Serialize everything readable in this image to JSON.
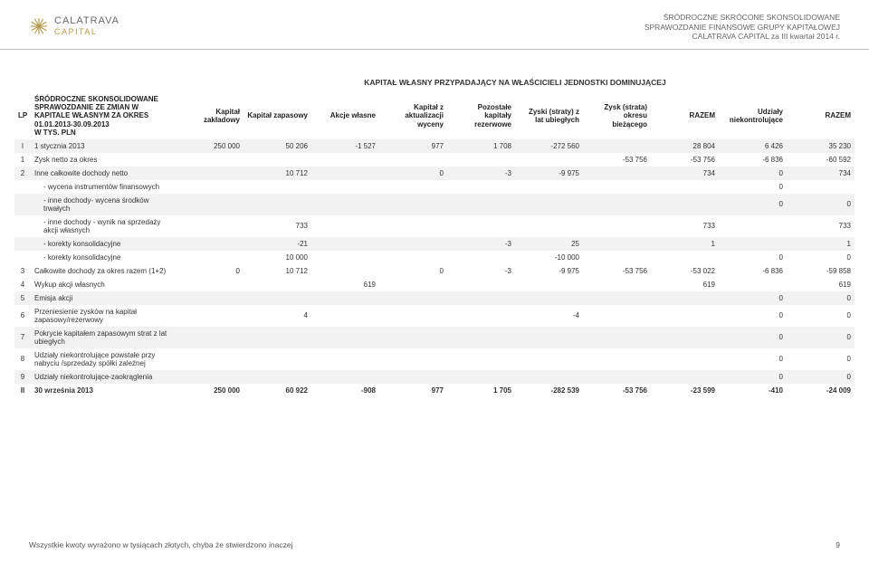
{
  "header": {
    "logo_top": "CALATRAVA",
    "logo_bottom": "CAPITAL",
    "logo_color": "#b5984c",
    "right_lines": [
      "ŚRÓDROCZNE SKRÓCONE SKONSOLIDOWANE",
      "SPRAWOZDANIE FINANSOWE  GRUPY KAPITAŁOWEJ",
      "CALATRAVA CAPITAL za III kwartał 2014 r."
    ]
  },
  "table": {
    "super_header": "KAPITAŁ WŁASNY PRZYPADAJĄCY NA WŁAŚCICIELI JEDNOSTKI DOMINUJĄCEJ",
    "lp_label": "LP",
    "desc_header": "ŚRÓDROCZNE SKONSOLIDOWANE SPRAWOZDANIE ZE ZMIAN W KAPITALE WŁASNYM ZA OKRES 01.01.2013-30.09.2013\nW TYS. PLN",
    "columns": [
      "Kapitał zakładowy",
      "Kapitał zapasowy",
      "Akcje własne",
      "Kapitał z aktualizacji wyceny",
      "Pozostałe kapitały rezerwowe",
      "Zyski (straty) z lat ubiegłych",
      "Zysk (strata) okresu bieżącego",
      "RAZEM",
      "Udziały niekontrolujące",
      "RAZEM"
    ],
    "rows": [
      {
        "lp": "I",
        "stripe": "even",
        "desc": "1 stycznia 2013",
        "vals": [
          "250 000",
          "50 206",
          "-1 527",
          "977",
          "1 708",
          "-272 560",
          "",
          "28 804",
          "6 426",
          "35 230"
        ]
      },
      {
        "lp": "1",
        "stripe": "odd",
        "desc": "Zysk netto za okres",
        "vals": [
          "",
          "",
          "",
          "",
          "",
          "",
          "-53 756",
          "-53 756",
          "-6 836",
          "-60 592"
        ]
      },
      {
        "lp": "2",
        "stripe": "even",
        "desc": "Inne całkowite dochody netto",
        "vals": [
          "",
          "10 712",
          "",
          "0",
          "-3",
          "-9 975",
          "",
          "734",
          "0",
          "734"
        ]
      },
      {
        "lp": "",
        "stripe": "odd",
        "indent": true,
        "desc": "- wycena instrumentów finansowych",
        "vals": [
          "",
          "",
          "",
          "",
          "",
          "",
          "",
          "",
          "0",
          ""
        ]
      },
      {
        "lp": "",
        "stripe": "even",
        "indent": true,
        "desc": "- inne dochody- wycena środków trwałych",
        "vals": [
          "",
          "",
          "",
          "",
          "",
          "",
          "",
          "",
          "0",
          "0"
        ]
      },
      {
        "lp": "",
        "stripe": "odd",
        "indent": true,
        "desc": "- inne dochody - wynik na sprzedaży akcji własnych",
        "vals": [
          "",
          "733",
          "",
          "",
          "",
          "",
          "",
          "733",
          "",
          "733"
        ]
      },
      {
        "lp": "",
        "stripe": "even",
        "indent": true,
        "desc": "- korekty konsolidacyjne",
        "vals": [
          "",
          "-21",
          "",
          "",
          "-3",
          "25",
          "",
          "1",
          "",
          "1"
        ]
      },
      {
        "lp": "",
        "stripe": "odd",
        "indent": true,
        "desc": "- korekty konsolidacyjne",
        "vals": [
          "",
          "10 000",
          "",
          "",
          "",
          "-10 000",
          "",
          "",
          "0",
          "0"
        ]
      },
      {
        "lp": "3",
        "stripe": "total",
        "desc": "Całkowite dochody za okres razem (1+2)",
        "vals": [
          "0",
          "10 712",
          "",
          "0",
          "-3",
          "-9 975",
          "-53 756",
          "-53 022",
          "-6 836",
          "-59 858"
        ]
      },
      {
        "lp": "4",
        "stripe": "odd",
        "desc": "Wykup akcji własnych",
        "vals": [
          "",
          "",
          "619",
          "",
          "",
          "",
          "",
          "619",
          "",
          "619"
        ]
      },
      {
        "lp": "5",
        "stripe": "even",
        "desc": "Emisja akcji",
        "vals": [
          "",
          "",
          "",
          "",
          "",
          "",
          "",
          "",
          "0",
          "0"
        ]
      },
      {
        "lp": "6",
        "stripe": "odd",
        "desc": "Przeniesienie zysków na kapitał zapasowy/rezerwowy",
        "vals": [
          "",
          "4",
          "",
          "",
          "",
          "-4",
          "",
          "",
          "0",
          "0"
        ]
      },
      {
        "lp": "7",
        "stripe": "even",
        "desc": "Pokrycie kapitałem zapasowym strat z lat ubiegłych",
        "vals": [
          "",
          "",
          "",
          "",
          "",
          "",
          "",
          "",
          "0",
          "0"
        ]
      },
      {
        "lp": "8",
        "stripe": "odd",
        "desc": "Udziały niekontrolujące powstałe przy nabyciu /sprzedaży spółki zależnej",
        "vals": [
          "",
          "",
          "",
          "",
          "",
          "",
          "",
          "",
          "0",
          "0"
        ]
      },
      {
        "lp": "9",
        "stripe": "even",
        "desc": "Udziały niekontrolujące-zaokrąglenia",
        "vals": [
          "",
          "",
          "",
          "",
          "",
          "",
          "",
          "",
          "0",
          "0"
        ]
      },
      {
        "lp": "II",
        "stripe": "odd",
        "desc": "30 września 2013",
        "bold": true,
        "vals": [
          "250 000",
          "60 922",
          "-908",
          "977",
          "1 705",
          "-282 539",
          "-53 756",
          "-23 599",
          "-410",
          "-24 009"
        ]
      }
    ],
    "col_widths": [
      "18px",
      "160px"
    ],
    "stripe_colors": {
      "even": "#f2f2f2",
      "odd": "#ffffff",
      "total": "#e8e8e8"
    }
  },
  "footer": {
    "left": "Wszystkie kwoty wyrażono w tysiącach złotych, chyba że stwierdzono inaczej",
    "page": "9"
  }
}
